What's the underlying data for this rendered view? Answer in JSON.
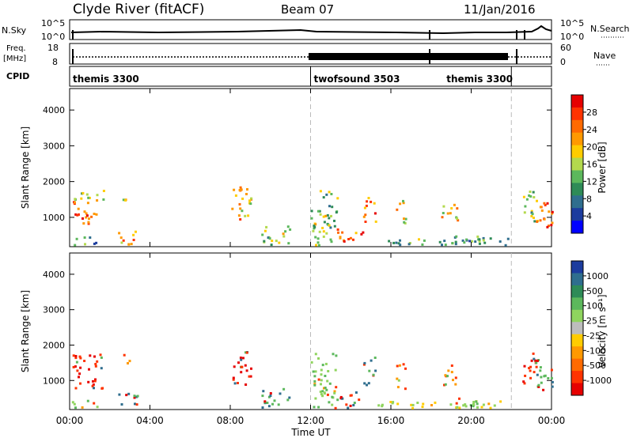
{
  "header": {
    "station": "Clyde River (fitACF)",
    "beam": "Beam 07",
    "date": "11/Jan/2016"
  },
  "left_labels": {
    "nsky": "N.Sky",
    "freq_line1": "Freq.",
    "freq_line2": "[MHz]",
    "cpid": "CPID"
  },
  "right_labels": {
    "nsearch": "N.Search",
    "nave": "Nave"
  },
  "noise_panel": {
    "left_ticks": [
      "10^5",
      "10^0"
    ],
    "right_ticks": [
      "10^5",
      "10^0"
    ]
  },
  "freq_panel": {
    "left_ticks": [
      "18",
      "8"
    ],
    "right_ticks": [
      "60",
      "0"
    ]
  },
  "cpid_segments": [
    {
      "label": "themis 3300",
      "start_hour": 0,
      "end_hour": 12
    },
    {
      "label": "twofsound 3503",
      "start_hour": 12,
      "end_hour": 22
    },
    {
      "label": "themis 3300",
      "start_hour": 22,
      "end_hour": 24
    }
  ],
  "colorbars": {
    "power": {
      "label": "Power [dB]",
      "ticks": [
        "28",
        "24",
        "20",
        "16",
        "12",
        "8",
        "4"
      ],
      "colors": [
        "#e60000",
        "#ff3300",
        "#ff6a00",
        "#ff9900",
        "#ffcc00",
        "#b3d94d",
        "#5cb85c",
        "#2e8b57",
        "#2f6e8e",
        "#1c3c9e",
        "#0000ff"
      ]
    },
    "velocity": {
      "label": "Velocity [m s⁻¹]",
      "ticks": [
        "1000",
        "500",
        "100",
        "25",
        "-25",
        "-100",
        "-500",
        "-1000"
      ],
      "colors": [
        "#1c3c9e",
        "#2f6e8e",
        "#2e8b57",
        "#5cb85c",
        "#8fd45e",
        "#bdbdbd",
        "#ffcc00",
        "#ff9900",
        "#ff6a00",
        "#ff3300",
        "#e60000"
      ]
    }
  },
  "chart_data": [
    {
      "type": "heatmap",
      "name": "Power",
      "ylabel": "Slant Range [km]",
      "yticks": [
        1000,
        2000,
        3000,
        4000
      ],
      "ylim": [
        180,
        4600
      ],
      "xlim_hours": [
        0,
        24
      ],
      "xticks": [
        "00:00",
        "04:00",
        "08:00",
        "12:00",
        "16:00",
        "20:00",
        "00:00"
      ],
      "colorbar": "Power [dB]",
      "regions": [
        {
          "t0": 0.1,
          "t1": 1.3,
          "r0": 800,
          "r1": 1500,
          "dB": 26
        },
        {
          "t0": 0.2,
          "t1": 1.7,
          "r0": 1400,
          "r1": 1800,
          "dB": 14
        },
        {
          "t0": 0.1,
          "t1": 1.4,
          "r0": 250,
          "r1": 500,
          "dB": 10
        },
        {
          "t0": 2.4,
          "t1": 3.4,
          "r0": 250,
          "r1": 700,
          "dB": 22
        },
        {
          "t0": 2.6,
          "t1": 3.0,
          "r0": 1500,
          "r1": 1800,
          "dB": 16
        },
        {
          "t0": 8.0,
          "t1": 9.0,
          "r0": 900,
          "r1": 1900,
          "dB": 20
        },
        {
          "t0": 9.5,
          "t1": 11.0,
          "r0": 250,
          "r1": 800,
          "dB": 14
        },
        {
          "t0": 12.0,
          "t1": 13.3,
          "r0": 250,
          "r1": 1800,
          "dB": 14
        },
        {
          "t0": 13.3,
          "t1": 14.6,
          "r0": 250,
          "r1": 700,
          "dB": 24
        },
        {
          "t0": 14.6,
          "t1": 15.2,
          "r0": 900,
          "r1": 1700,
          "dB": 24
        },
        {
          "t0": 15.2,
          "t1": 22.0,
          "r0": 250,
          "r1": 450,
          "dB": 10
        },
        {
          "t0": 16.2,
          "t1": 16.7,
          "r0": 800,
          "r1": 1500,
          "dB": 18
        },
        {
          "t0": 19.0,
          "t1": 20.5,
          "r0": 250,
          "r1": 550,
          "dB": 10
        },
        {
          "t0": 18.5,
          "t1": 19.3,
          "r0": 900,
          "r1": 1500,
          "dB": 18
        },
        {
          "t0": 22.5,
          "t1": 23.3,
          "r0": 900,
          "r1": 1800,
          "dB": 12
        },
        {
          "t0": 23.2,
          "t1": 24.0,
          "r0": 700,
          "r1": 1700,
          "dB": 26
        }
      ]
    },
    {
      "type": "heatmap",
      "name": "Velocity",
      "ylabel": "Slant Range [km]",
      "yticks": [
        1000,
        2000,
        3000,
        4000
      ],
      "ylim": [
        180,
        4600
      ],
      "xlim_hours": [
        0,
        24
      ],
      "xticks": [
        "00:00",
        "04:00",
        "08:00",
        "12:00",
        "16:00",
        "20:00",
        "00:00"
      ],
      "xlabel": "Time UT",
      "colorbar": "Velocity [m s⁻¹]",
      "regions": [
        {
          "t0": 0.1,
          "t1": 1.6,
          "r0": 800,
          "r1": 1800,
          "v": -500
        },
        {
          "t0": 0.1,
          "t1": 1.4,
          "r0": 250,
          "r1": 500,
          "v": 100
        },
        {
          "t0": 2.4,
          "t1": 3.4,
          "r0": 250,
          "r1": 700,
          "v": 500
        },
        {
          "t0": 2.6,
          "t1": 3.0,
          "r0": 1500,
          "r1": 1800,
          "v": -100
        },
        {
          "t0": 8.0,
          "t1": 9.0,
          "r0": 900,
          "r1": 1900,
          "v": -500
        },
        {
          "t0": 9.5,
          "t1": 11.0,
          "r0": 250,
          "r1": 800,
          "v": 500
        },
        {
          "t0": 12.0,
          "t1": 13.3,
          "r0": 250,
          "r1": 1800,
          "v": 100
        },
        {
          "t0": 13.3,
          "t1": 14.6,
          "r0": 250,
          "r1": 700,
          "v": -500
        },
        {
          "t0": 14.6,
          "t1": 15.2,
          "r0": 900,
          "r1": 1700,
          "v": 500
        },
        {
          "t0": 15.2,
          "t1": 22.0,
          "r0": 250,
          "r1": 450,
          "v": 25
        },
        {
          "t0": 16.2,
          "t1": 16.7,
          "r0": 800,
          "r1": 1500,
          "v": -100
        },
        {
          "t0": 19.0,
          "t1": 20.5,
          "r0": 250,
          "r1": 550,
          "v": 100
        },
        {
          "t0": 18.5,
          "t1": 19.3,
          "r0": 900,
          "r1": 1500,
          "v": -100
        },
        {
          "t0": 22.5,
          "t1": 23.3,
          "r0": 900,
          "r1": 1800,
          "v": -500
        },
        {
          "t0": 23.2,
          "t1": 24.0,
          "r0": 700,
          "r1": 1700,
          "v": 500
        }
      ]
    }
  ]
}
